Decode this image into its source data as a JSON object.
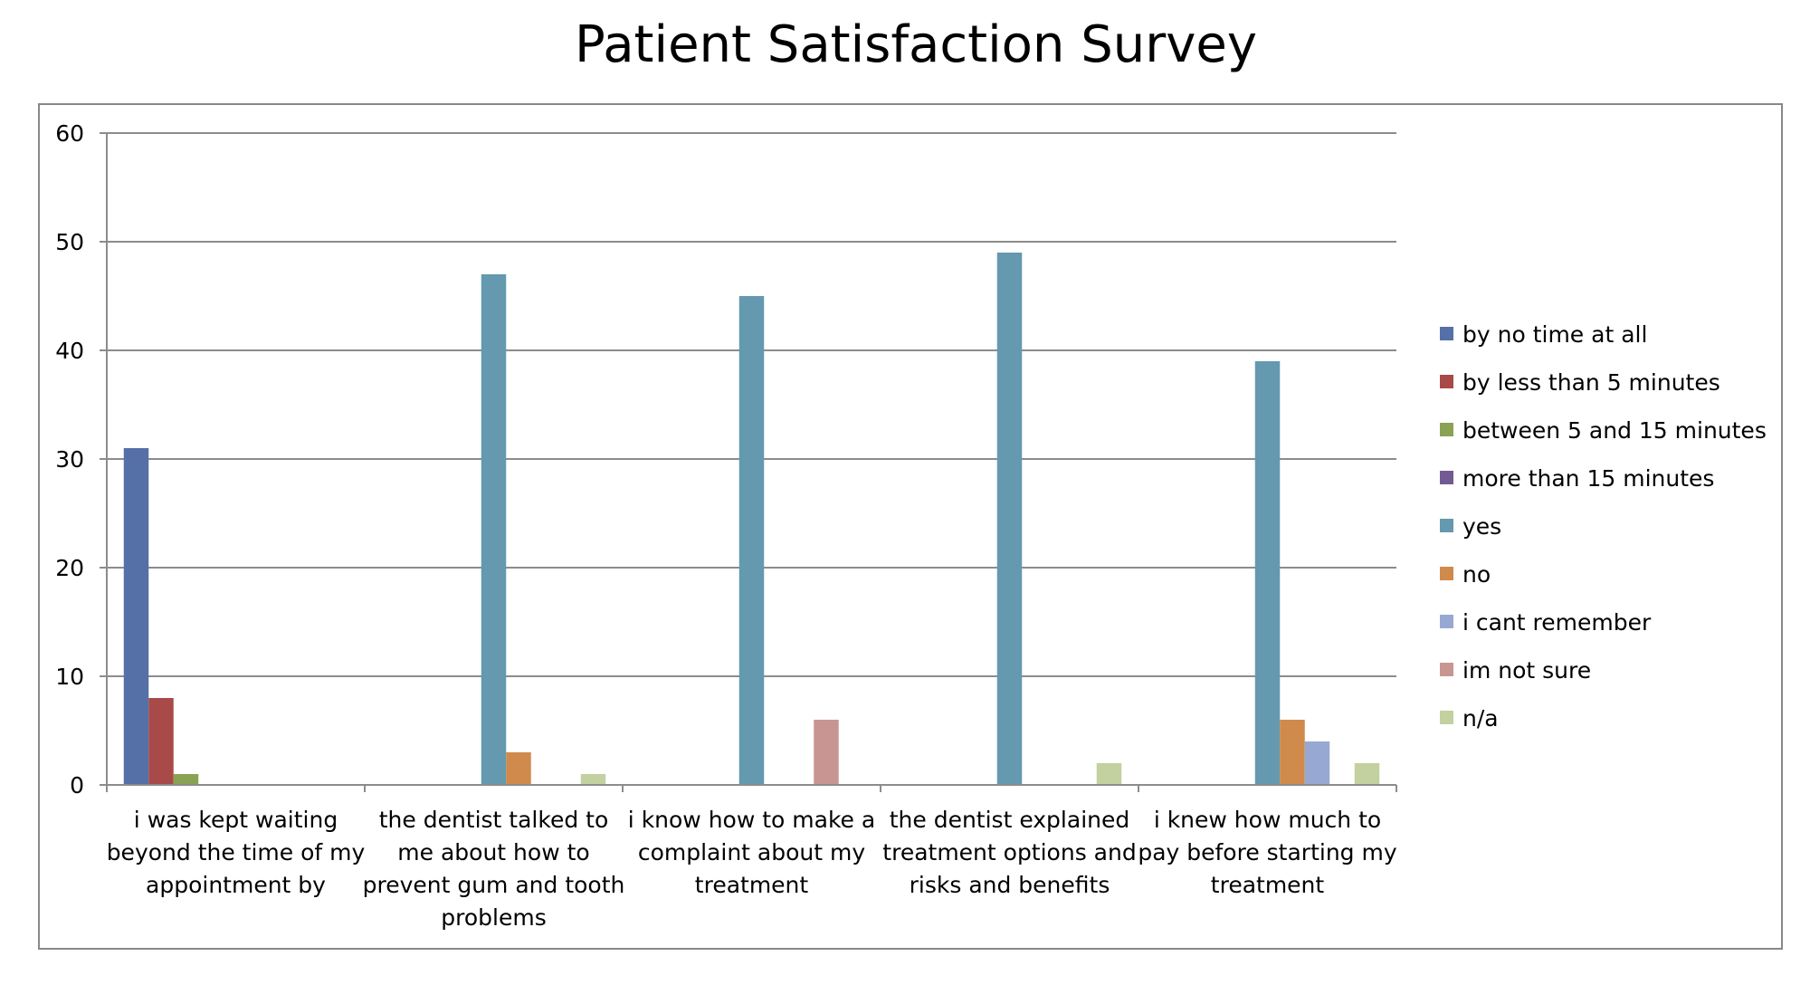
{
  "chart_data": {
    "type": "bar",
    "title": "Patient Satisfaction Survey",
    "xlabel": "",
    "ylabel": "",
    "ylim": [
      0,
      60
    ],
    "yticks": [
      0,
      10,
      20,
      30,
      40,
      50,
      60
    ],
    "grid": true,
    "legend_position": "right",
    "categories": [
      [
        "i was kept waiting",
        "beyond the time of my",
        "appointment by"
      ],
      [
        "the dentist talked to",
        "me about how to",
        "prevent gum and tooth",
        "problems"
      ],
      [
        "i know how to make a",
        "complaint about my",
        "treatment"
      ],
      [
        "the dentist explained",
        "treatment options and",
        "risks and benefits"
      ],
      [
        "i knew how much to",
        "pay before starting my",
        "treatment"
      ]
    ],
    "series": [
      {
        "name": "by no time at all",
        "color": "#5470a6",
        "values": [
          31,
          0,
          0,
          0,
          0
        ]
      },
      {
        "name": "by less than 5 minutes",
        "color": "#a84a48",
        "values": [
          8,
          0,
          0,
          0,
          0
        ]
      },
      {
        "name": "between 5 and 15 minutes",
        "color": "#8aa253",
        "values": [
          1,
          0,
          0,
          0,
          0
        ]
      },
      {
        "name": "more than 15 minutes",
        "color": "#725b92",
        "values": [
          0,
          0,
          0,
          0,
          0
        ]
      },
      {
        "name": "yes",
        "color": "#6499b0",
        "values": [
          0,
          47,
          45,
          49,
          39
        ]
      },
      {
        "name": "no",
        "color": "#d08a4c",
        "values": [
          0,
          3,
          0,
          0,
          6
        ]
      },
      {
        "name": "i cant remember",
        "color": "#97a9d2",
        "values": [
          0,
          0,
          0,
          0,
          4
        ]
      },
      {
        "name": "im not sure",
        "color": "#c99593",
        "values": [
          0,
          0,
          6,
          0,
          0
        ]
      },
      {
        "name": "n/a",
        "color": "#c2d19f",
        "values": [
          0,
          1,
          0,
          2,
          2
        ]
      }
    ]
  }
}
